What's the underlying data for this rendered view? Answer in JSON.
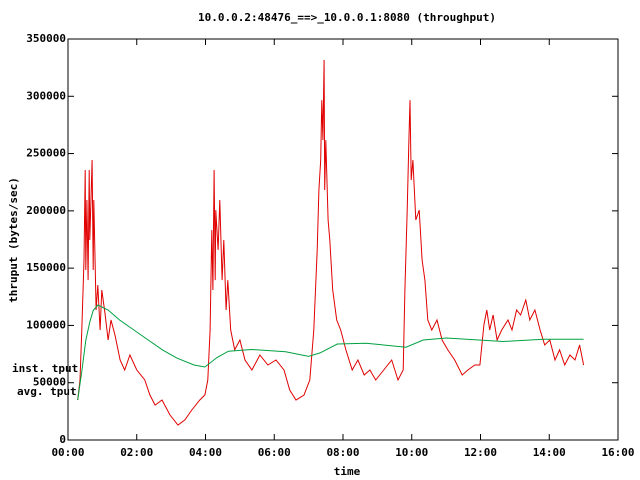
{
  "chart_data": {
    "type": "line",
    "title": "10.0.0.2:48476_==>_10.0.0.1:8080 (throughput)",
    "xlabel": "time",
    "ylabel": "thruput (bytes/sec)",
    "xlim": [
      0,
      960
    ],
    "ylim": [
      0,
      350000
    ],
    "xticks": [
      {
        "value": 0,
        "label": "00:00"
      },
      {
        "value": 120,
        "label": "02:00"
      },
      {
        "value": 240,
        "label": "04:00"
      },
      {
        "value": 360,
        "label": "06:00"
      },
      {
        "value": 480,
        "label": "08:00"
      },
      {
        "value": 600,
        "label": "10:00"
      },
      {
        "value": 720,
        "label": "12:00"
      },
      {
        "value": 840,
        "label": "14:00"
      },
      {
        "value": 960,
        "label": "16:00"
      }
    ],
    "yticks": [
      0,
      50000,
      100000,
      150000,
      200000,
      250000,
      300000,
      350000
    ],
    "series": [
      {
        "name": "inst. tput",
        "color": "#e00000",
        "x": [
          17,
          21,
          24,
          28,
          30,
          31,
          33,
          35,
          37,
          38,
          42,
          44,
          45,
          49,
          52,
          56,
          59,
          65,
          70,
          75,
          82,
          91,
          99,
          108,
          120,
          134,
          143,
          152,
          164,
          178,
          192,
          204,
          216,
          230,
          239,
          244,
          248,
          251,
          253,
          255,
          257,
          258,
          262,
          265,
          269,
          272,
          276,
          279,
          284,
          291,
          300,
          309,
          321,
          335,
          349,
          363,
          377,
          387,
          398,
          412,
          422,
          429,
          435,
          438,
          441,
          443,
          445,
          447,
          448,
          450,
          454,
          457,
          462,
          469,
          476,
          485,
          496,
          506,
          517,
          527,
          537,
          551,
          565,
          576,
          585,
          588,
          592,
          595,
          597,
          599,
          602,
          607,
          613,
          618,
          623,
          628,
          635,
          644,
          653,
          663,
          675,
          688,
          698,
          710,
          719,
          726,
          731,
          736,
          742,
          749,
          757,
          768,
          775,
          783,
          790,
          799,
          806,
          815,
          824,
          832,
          841,
          850,
          858,
          867,
          876,
          885,
          893,
          900
        ],
        "values": [
          34900,
          52400,
          96000,
          157100,
          235700,
          148400,
          209500,
          139600,
          235700,
          174600,
          244400,
          148400,
          209500,
          113500,
          135300,
          96000,
          130900,
          109100,
          87300,
          104700,
          91600,
          69800,
          61100,
          74200,
          61100,
          52400,
          39300,
          30500,
          34900,
          21800,
          13100,
          17500,
          26200,
          34900,
          39300,
          52400,
          96000,
          183300,
          130900,
          235700,
          139600,
          200700,
          165800,
          209500,
          139600,
          174600,
          113500,
          139600,
          96000,
          78600,
          87300,
          69800,
          61100,
          74200,
          65500,
          69800,
          61100,
          43600,
          34900,
          39300,
          52400,
          96000,
          165800,
          218200,
          244400,
          296700,
          261800,
          331700,
          218200,
          261800,
          192000,
          174600,
          130900,
          104700,
          96000,
          78600,
          61100,
          69800,
          56700,
          61100,
          52400,
          61100,
          69800,
          52400,
          61100,
          130900,
          200700,
          261800,
          296700,
          226900,
          244400,
          192000,
          200700,
          157100,
          139600,
          104700,
          96000,
          104700,
          87300,
          78600,
          69800,
          56700,
          61100,
          65500,
          65500,
          100400,
          113500,
          96000,
          109100,
          87300,
          96000,
          104700,
          96000,
          113500,
          109100,
          122200,
          104700,
          113500,
          96000,
          82900,
          87300,
          69800,
          78600,
          65500,
          74200,
          69800,
          82900,
          65500
        ]
      },
      {
        "name": "avg. tput",
        "color": "#00a040",
        "x": [
          17,
          24,
          31,
          38,
          44,
          52,
          70,
          90,
          115,
          140,
          165,
          190,
          220,
          239,
          260,
          280,
          320,
          380,
          420,
          440,
          470,
          520,
          590,
          620,
          660,
          760,
          830,
          900
        ],
        "values": [
          34900,
          60000,
          87000,
          103000,
          113000,
          117800,
          113500,
          104700,
          96000,
          87300,
          78600,
          71500,
          65500,
          63700,
          72000,
          77500,
          79000,
          77000,
          73000,
          76000,
          83800,
          84500,
          81000,
          87300,
          89000,
          86000,
          88000,
          88000
        ]
      }
    ]
  }
}
